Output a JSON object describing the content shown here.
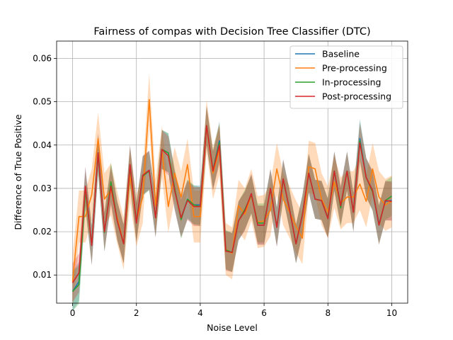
{
  "chart_data": {
    "type": "line",
    "title": "Fairness of compas with Decision Tree Classifier (DTC)",
    "xlabel": "Noise Level",
    "ylabel": "Difference of True Positive",
    "xlim": [
      -0.5,
      10.5
    ],
    "ylim": [
      0.0035,
      0.064
    ],
    "xticks": [
      0,
      2,
      4,
      6,
      8,
      10
    ],
    "yticks": [
      0.01,
      0.02,
      0.03,
      0.04,
      0.05,
      0.06
    ],
    "ytick_labels": [
      "0.01",
      "0.02",
      "0.03",
      "0.04",
      "0.05",
      "0.06"
    ],
    "grid": true,
    "legend_position": "top-right",
    "x": [
      0,
      0.2,
      0.4,
      0.6,
      0.8,
      1.0,
      1.2,
      1.4,
      1.6,
      1.8,
      2.0,
      2.2,
      2.4,
      2.6,
      2.8,
      3.0,
      3.2,
      3.4,
      3.6,
      3.8,
      4.0,
      4.2,
      4.4,
      4.6,
      4.8,
      5.0,
      5.2,
      5.4,
      5.6,
      5.8,
      6.0,
      6.2,
      6.4,
      6.6,
      6.8,
      7.0,
      7.2,
      7.4,
      7.6,
      7.8,
      8.0,
      8.2,
      8.4,
      8.6,
      8.8,
      9.0,
      9.2,
      9.4,
      9.6,
      9.8,
      10.0
    ],
    "series": [
      {
        "name": "Baseline",
        "color": "#1f77b4",
        "values": [
          0.0062,
          0.0085,
          0.0305,
          0.0168,
          0.0382,
          0.02,
          0.031,
          0.0225,
          0.0172,
          0.0355,
          0.022,
          0.033,
          0.0342,
          0.0232,
          0.039,
          0.0382,
          0.0295,
          0.0232,
          0.0275,
          0.0262,
          0.0262,
          0.0445,
          0.0342,
          0.041,
          0.0158,
          0.0152,
          0.0225,
          0.0248,
          0.0288,
          0.0215,
          0.0215,
          0.03,
          0.021,
          0.0322,
          0.025,
          0.0172,
          0.0238,
          0.0335,
          0.0275,
          0.0272,
          0.023,
          0.034,
          0.026,
          0.034,
          0.0245,
          0.0415,
          0.0325,
          0.0295,
          0.0218,
          0.027,
          0.0272
        ],
        "band": 0.0045
      },
      {
        "name": "Pre-processing",
        "color": "#ff7f0e",
        "values": [
          0.0085,
          0.0235,
          0.0235,
          0.0285,
          0.0415,
          0.0275,
          0.0298,
          0.0232,
          0.0172,
          0.033,
          0.0225,
          0.028,
          0.0505,
          0.026,
          0.0385,
          0.0258,
          0.0335,
          0.028,
          0.0355,
          0.0235,
          0.0235,
          0.0445,
          0.0335,
          0.039,
          0.016,
          0.015,
          0.026,
          0.024,
          0.0285,
          0.0222,
          0.0225,
          0.025,
          0.0345,
          0.0275,
          0.0245,
          0.0212,
          0.0185,
          0.035,
          0.0345,
          0.0275,
          0.0245,
          0.0315,
          0.0265,
          0.028,
          0.028,
          0.031,
          0.027,
          0.0345,
          0.028,
          0.0262,
          0.027
        ],
        "band": 0.006
      },
      {
        "name": "In-processing",
        "color": "#2ca02c",
        "values": [
          0.0062,
          0.0078,
          0.0295,
          0.017,
          0.0378,
          0.0198,
          0.0315,
          0.0225,
          0.0172,
          0.035,
          0.0222,
          0.0328,
          0.034,
          0.0232,
          0.039,
          0.0382,
          0.03,
          0.0228,
          0.0275,
          0.0262,
          0.0258,
          0.0445,
          0.0342,
          0.0405,
          0.0158,
          0.0152,
          0.0225,
          0.0252,
          0.0285,
          0.022,
          0.022,
          0.0298,
          0.0212,
          0.032,
          0.025,
          0.0172,
          0.024,
          0.0335,
          0.0275,
          0.0272,
          0.0232,
          0.034,
          0.0255,
          0.034,
          0.0245,
          0.041,
          0.0325,
          0.0292,
          0.0215,
          0.0272,
          0.0282
        ],
        "band": 0.0045
      },
      {
        "name": "Post-processing",
        "color": "#d62728",
        "values": [
          0.0082,
          0.0105,
          0.0305,
          0.0168,
          0.0382,
          0.02,
          0.0305,
          0.0225,
          0.0172,
          0.0355,
          0.022,
          0.033,
          0.0342,
          0.0232,
          0.039,
          0.0375,
          0.0295,
          0.0232,
          0.0272,
          0.0258,
          0.0258,
          0.0445,
          0.034,
          0.04,
          0.0155,
          0.0152,
          0.0225,
          0.0248,
          0.0288,
          0.0215,
          0.0215,
          0.03,
          0.021,
          0.0322,
          0.025,
          0.0172,
          0.0238,
          0.0335,
          0.0275,
          0.0272,
          0.023,
          0.034,
          0.026,
          0.034,
          0.0245,
          0.0405,
          0.0325,
          0.0295,
          0.0215,
          0.0272,
          0.027
        ],
        "band": 0.0045
      }
    ]
  }
}
